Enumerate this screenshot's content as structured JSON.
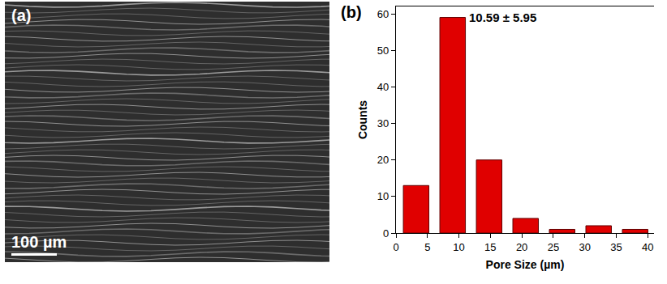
{
  "image_panel": {
    "label": "(a)",
    "scale_bar_label": "100 µm"
  },
  "chart_data": {
    "type": "histogram",
    "panel_label": "(b)",
    "annotations": [
      "10.59 ± 5.95"
    ],
    "x_label": "Pore Size (µm)",
    "y_label": "Counts",
    "bins": [
      0.3,
      6.1,
      11.9,
      17.7,
      23.5,
      29.3,
      35.1,
      40.9
    ],
    "counts": [
      13,
      59,
      20,
      4,
      1,
      2,
      1
    ],
    "color": "#e00000",
    "xlim": [
      0,
      41
    ],
    "xticks": [
      0,
      5,
      10,
      15,
      20,
      25,
      30,
      35,
      40
    ],
    "ylim": [
      0,
      62
    ],
    "yticks": [
      0,
      10,
      20,
      30,
      40,
      50,
      60
    ],
    "grid": false
  }
}
